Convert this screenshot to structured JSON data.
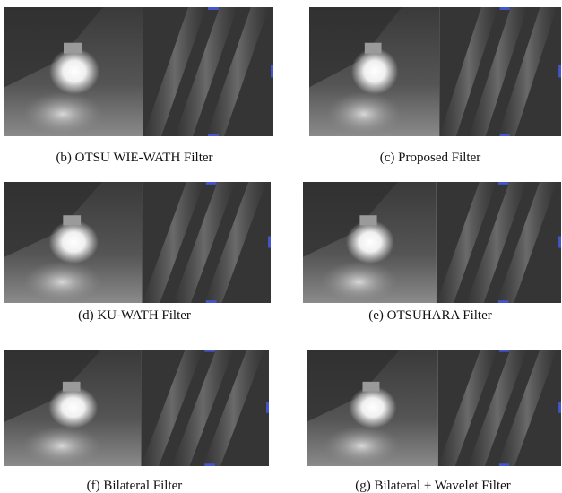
{
  "panels": [
    {
      "caption": "(b) OTSU WIE-WATH Filter"
    },
    {
      "caption": "(c) Proposed Filter"
    },
    {
      "caption": "(d) KU-WATH Filter"
    },
    {
      "caption": "(e) OTSUHARA Filter"
    },
    {
      "caption": "(f) Bilateral Filter"
    },
    {
      "caption": "(g) Bilateral + Wavelet Filter"
    }
  ]
}
